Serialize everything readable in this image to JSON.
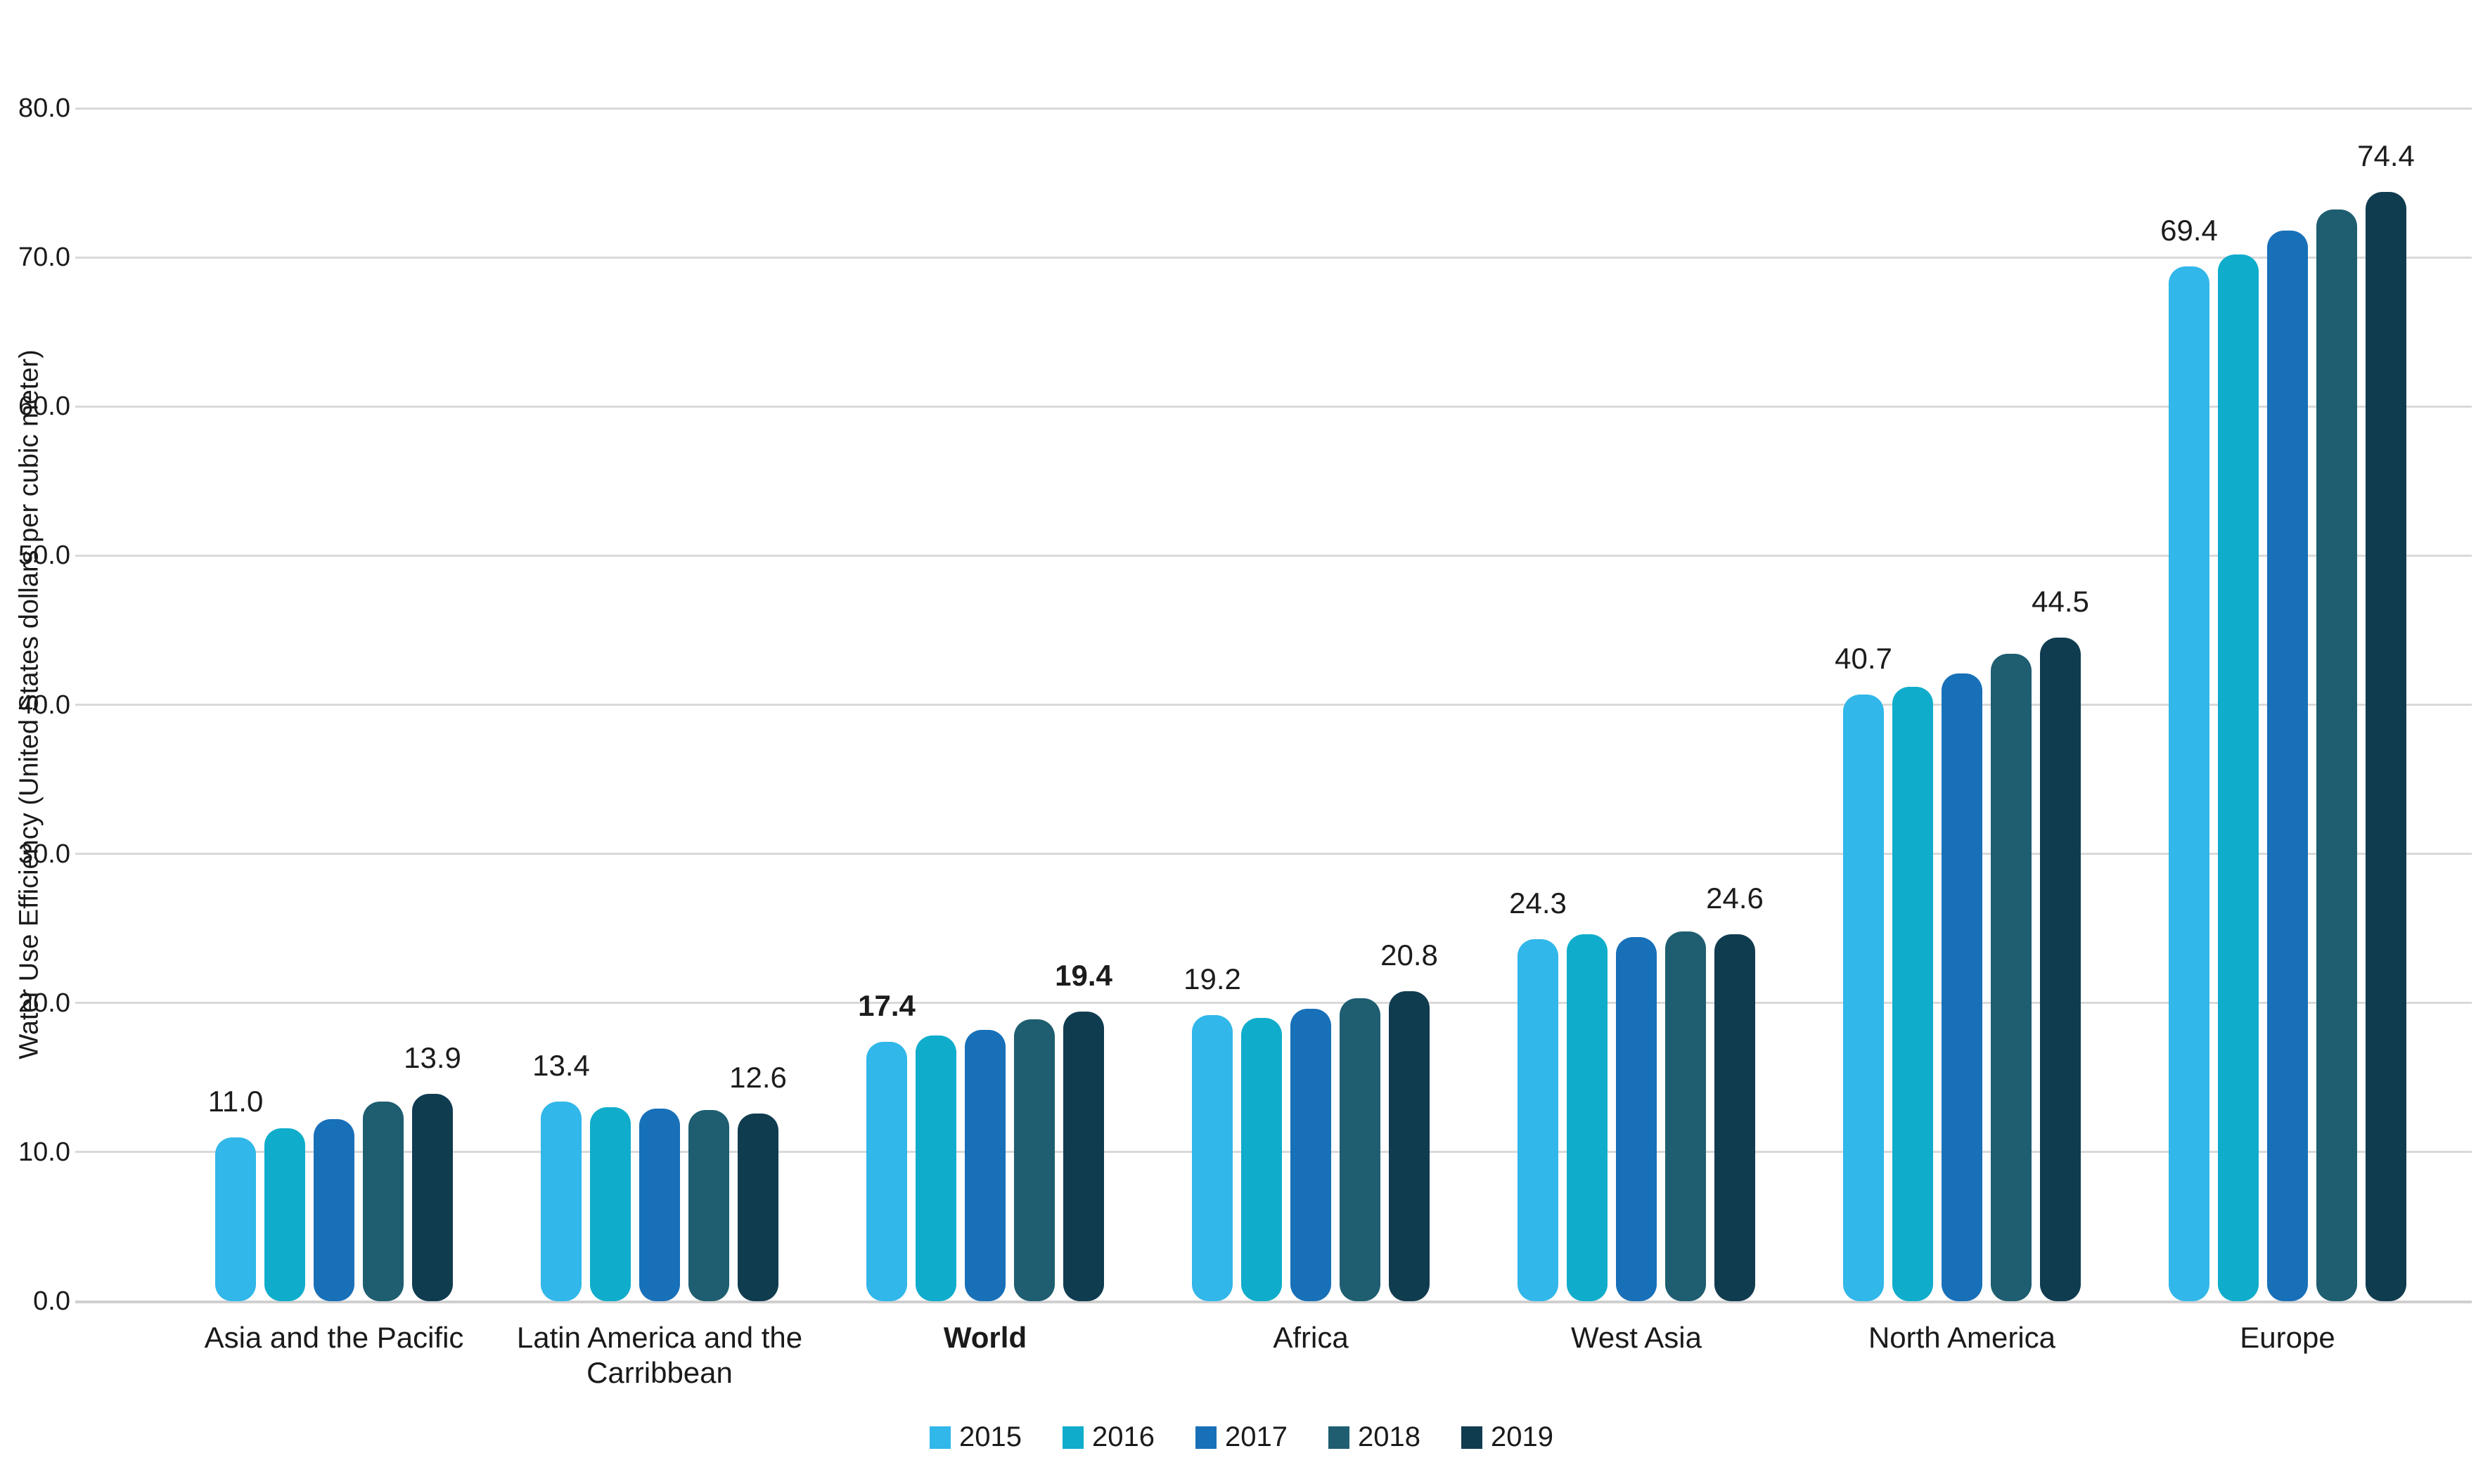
{
  "chart_data": {
    "type": "bar",
    "title": "",
    "ylabel": "Water Use Efficiency (United States dollars  per cubic meter)",
    "xlabel": "",
    "ylim": [
      0,
      80
    ],
    "ytick_step": 10,
    "grid": true,
    "legend_position": "bottom",
    "categories": [
      "Asia and the Pacific",
      "Latin America and the\nCarribbean",
      "World",
      "Africa",
      "West Asia",
      "North America",
      "Europe"
    ],
    "emphasized_category": "World",
    "series": [
      {
        "name": "2015",
        "color": "#31b7e9",
        "values": [
          11.0,
          13.4,
          17.4,
          19.2,
          24.3,
          40.7,
          69.4
        ]
      },
      {
        "name": "2016",
        "color": "#0fadcb",
        "values": [
          11.6,
          13.0,
          17.8,
          19.0,
          24.6,
          41.2,
          70.2
        ]
      },
      {
        "name": "2017",
        "color": "#1870b9",
        "values": [
          12.2,
          12.9,
          18.2,
          19.6,
          24.4,
          42.1,
          71.8
        ]
      },
      {
        "name": "2018",
        "color": "#1e5e70",
        "values": [
          13.4,
          12.8,
          18.9,
          20.3,
          24.8,
          43.4,
          73.2
        ]
      },
      {
        "name": "2019",
        "color": "#103c50",
        "values": [
          13.9,
          12.6,
          19.4,
          20.8,
          24.6,
          44.5,
          74.4
        ]
      }
    ],
    "data_label_series": [
      "2015",
      "2019"
    ],
    "visible_data_labels": {
      "2015": [
        "11.0",
        "13.4",
        "17.4",
        "19.2",
        "24.3",
        "40.7",
        "69.4"
      ],
      "2019": [
        "13.9",
        "12.6",
        "19.4",
        "20.8",
        "24.6",
        "44.5",
        "74.4"
      ]
    },
    "legend": [
      "2015",
      "2016",
      "2017",
      "2018",
      "2019"
    ]
  }
}
